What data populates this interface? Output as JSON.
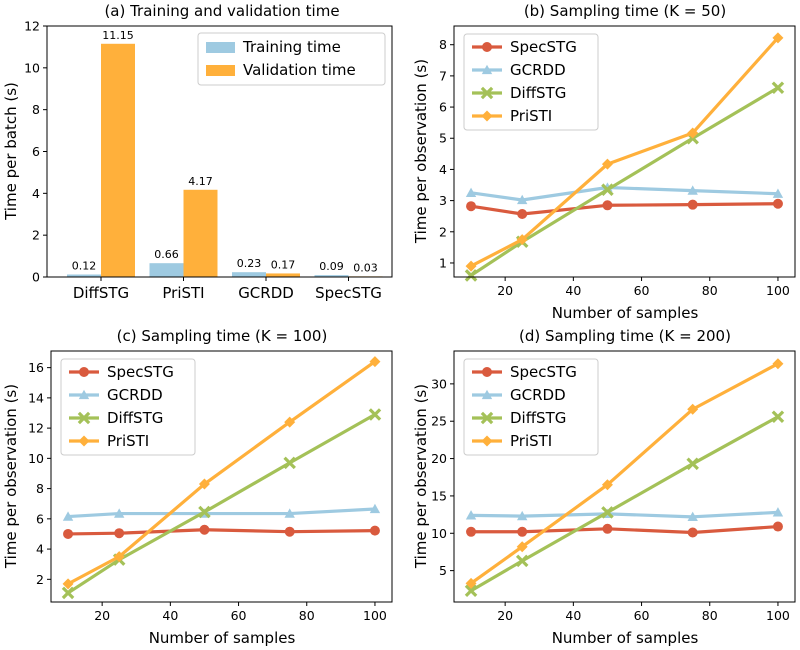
{
  "chart_data": [
    {
      "type": "bar",
      "title": "(a) Training and validation time",
      "xlabel": "",
      "ylabel": "Time per batch (s)",
      "categories": [
        "DiffSTG",
        "PriSTI",
        "GCRDD",
        "SpecSTG"
      ],
      "series": [
        {
          "name": "Training time",
          "values": [
            0.12,
            0.66,
            0.23,
            0.09
          ],
          "labels": [
            "0.12",
            "0.66",
            "0.23",
            "0.09"
          ],
          "color": "#9ecae1"
        },
        {
          "name": "Validation time",
          "values": [
            11.15,
            4.17,
            0.17,
            0.03
          ],
          "labels": [
            "11.15",
            "4.17",
            "0.17",
            "0.03"
          ],
          "color": "#ffb03b"
        }
      ],
      "ylim": [
        0,
        12
      ],
      "yticks": [
        0,
        2,
        4,
        6,
        8,
        10,
        12
      ],
      "legend": "top-right"
    },
    {
      "type": "line",
      "title": "(b) Sampling time (K = 50)",
      "xlabel": "Number of samples",
      "ylabel": "Time per observation (s)",
      "x": [
        10,
        25,
        50,
        75,
        100
      ],
      "xlim": [
        5,
        105
      ],
      "xticks": [
        20,
        40,
        60,
        80,
        100
      ],
      "ylim": [
        0.55,
        8.6
      ],
      "yticks": [
        1,
        2,
        3,
        4,
        5,
        6,
        7,
        8
      ],
      "legend": "top-left",
      "series": [
        {
          "name": "SpecSTG",
          "values": [
            2.82,
            2.57,
            2.85,
            2.87,
            2.9
          ],
          "color": "#d95a3e",
          "marker": "circle"
        },
        {
          "name": "GCRDD",
          "values": [
            3.25,
            3.02,
            3.42,
            3.32,
            3.22
          ],
          "color": "#9ecae1",
          "marker": "triangle"
        },
        {
          "name": "DiffSTG",
          "values": [
            0.6,
            1.68,
            3.35,
            5.0,
            6.62
          ],
          "color": "#a4c158",
          "marker": "x"
        },
        {
          "name": "PriSTI",
          "values": [
            0.9,
            1.75,
            4.17,
            5.17,
            8.22
          ],
          "color": "#ffb03b",
          "marker": "diamond"
        }
      ]
    },
    {
      "type": "line",
      "title": "(c) Sampling time (K = 100)",
      "xlabel": "Number of samples",
      "ylabel": "Time per observation (s)",
      "x": [
        10,
        25,
        50,
        75,
        100
      ],
      "xlim": [
        5,
        105
      ],
      "xticks": [
        20,
        40,
        60,
        80,
        100
      ],
      "ylim": [
        0.5,
        17.1
      ],
      "yticks": [
        2,
        4,
        6,
        8,
        10,
        12,
        14,
        16
      ],
      "legend": "top-left",
      "series": [
        {
          "name": "SpecSTG",
          "values": [
            5.0,
            5.05,
            5.28,
            5.15,
            5.22
          ],
          "color": "#d95a3e",
          "marker": "circle"
        },
        {
          "name": "GCRDD",
          "values": [
            6.15,
            6.35,
            6.35,
            6.35,
            6.65
          ],
          "color": "#9ecae1",
          "marker": "triangle"
        },
        {
          "name": "DiffSTG",
          "values": [
            1.1,
            3.3,
            6.45,
            9.7,
            12.9
          ],
          "color": "#a4c158",
          "marker": "x"
        },
        {
          "name": "PriSTI",
          "values": [
            1.7,
            3.5,
            8.3,
            12.4,
            16.4
          ],
          "color": "#ffb03b",
          "marker": "diamond"
        }
      ]
    },
    {
      "type": "line",
      "title": "(d) Sampling time (K = 200)",
      "xlabel": "Number of samples",
      "ylabel": "Time per observation (s)",
      "x": [
        10,
        25,
        50,
        75,
        100
      ],
      "xlim": [
        5,
        105
      ],
      "xticks": [
        20,
        40,
        60,
        80,
        100
      ],
      "ylim": [
        0.8,
        34.4
      ],
      "yticks": [
        5,
        10,
        15,
        20,
        25,
        30
      ],
      "legend": "top-left",
      "series": [
        {
          "name": "SpecSTG",
          "values": [
            10.2,
            10.2,
            10.6,
            10.1,
            10.9
          ],
          "color": "#d95a3e",
          "marker": "circle"
        },
        {
          "name": "GCRDD",
          "values": [
            12.4,
            12.3,
            12.6,
            12.2,
            12.8
          ],
          "color": "#9ecae1",
          "marker": "triangle"
        },
        {
          "name": "DiffSTG",
          "values": [
            2.3,
            6.3,
            12.8,
            19.3,
            25.6
          ],
          "color": "#a4c158",
          "marker": "x"
        },
        {
          "name": "PriSTI",
          "values": [
            3.3,
            8.2,
            16.5,
            26.6,
            32.7
          ],
          "color": "#ffb03b",
          "marker": "diamond"
        }
      ]
    }
  ]
}
